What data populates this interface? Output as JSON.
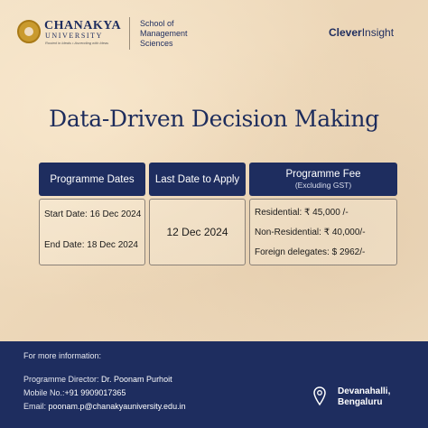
{
  "header": {
    "university_name": "CHANAKYA",
    "university_sub": "UNIVERSITY",
    "tagline": "Rooted in Ideals • Ascending with Ideas",
    "school_line1": "School of",
    "school_line2": "Management",
    "school_line3": "Sciences",
    "partner_bold": "Clever",
    "partner_rest": "Insight"
  },
  "title": "Data-Driven Decision Making",
  "table": {
    "col1": {
      "header": "Programme Dates",
      "start": "Start Date: 16 Dec 2024",
      "end": "End Date: 18 Dec 2024"
    },
    "col2": {
      "header": "Last Date to Apply",
      "value": "12 Dec 2024"
    },
    "col3": {
      "header": "Programme Fee",
      "subheader": "(Excluding GST)",
      "residential": "Residential: ₹ 45,000 /-",
      "non_residential": "Non-Residential: ₹ 40,000/-",
      "foreign": "Foreign delegates: $ 2962/-"
    }
  },
  "footer": {
    "info_label": "For more information:",
    "director_label": "Programme Director: ",
    "director_name": "Dr. Poonam Purhoit",
    "mobile_label": "Mobile No.:",
    "mobile_value": "+91 9909017365",
    "email_label": "Email: ",
    "email_value": "poonam.p@chanakyauniversity.edu.in",
    "location_line1": "Devanahalli,",
    "location_line2": "Bengaluru"
  },
  "colors": {
    "navy": "#1e2d5f",
    "background": "#efdcc1",
    "gold": "#c99a2e"
  },
  "icons": [
    "university-seal-icon",
    "location-pin-icon"
  ]
}
